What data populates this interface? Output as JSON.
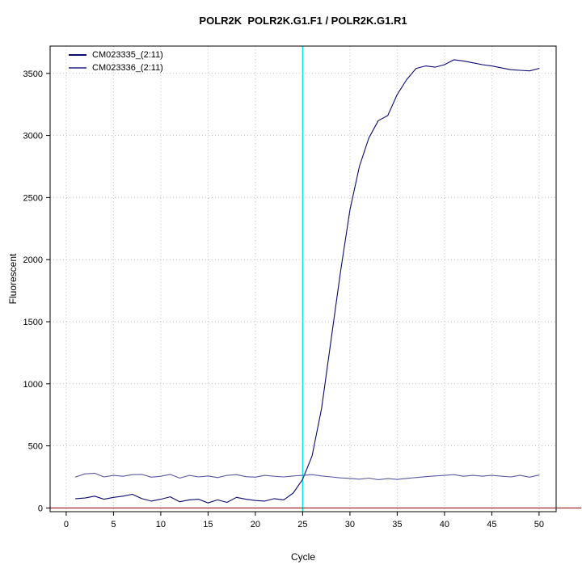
{
  "chart_data": {
    "type": "line",
    "title": "POLR2K  POLR2K.G1.F1 / POLR2K.G1.R1",
    "xlabel": "Cycle",
    "ylabel": "Fluorescent",
    "xlim": [
      -1.7,
      51.8
    ],
    "ylim": [
      -30,
      3720
    ],
    "xticks": [
      0,
      5,
      10,
      15,
      20,
      25,
      30,
      35,
      40,
      45,
      50
    ],
    "yticks": [
      0,
      500,
      1000,
      1500,
      2000,
      2500,
      3000,
      3500
    ],
    "grid": true,
    "grid_color": "#c3c3c3",
    "legend_position": "top-left",
    "x": [
      1,
      2,
      3,
      4,
      5,
      6,
      7,
      8,
      9,
      10,
      11,
      12,
      13,
      14,
      15,
      16,
      17,
      18,
      19,
      20,
      21,
      22,
      23,
      24,
      25,
      26,
      27,
      28,
      29,
      30,
      31,
      32,
      33,
      34,
      35,
      36,
      37,
      38,
      39,
      40,
      41,
      42,
      43,
      44,
      45,
      46,
      47,
      48,
      49,
      50
    ],
    "series": [
      {
        "name": "CM023335_(2:11)",
        "color": "#0b0b6f",
        "values": [
          75,
          80,
          95,
          70,
          85,
          95,
          110,
          75,
          55,
          70,
          90,
          50,
          65,
          70,
          40,
          65,
          45,
          85,
          70,
          60,
          55,
          75,
          65,
          120,
          230,
          420,
          800,
          1350,
          1900,
          2400,
          2750,
          2980,
          3120,
          3160,
          3330,
          3450,
          3540,
          3560,
          3550,
          3570,
          3610,
          3600,
          3585,
          3570,
          3560,
          3545,
          3530,
          3525,
          3520,
          3540
        ]
      },
      {
        "name": "CM023336_(2:11)",
        "color": "#5a5aa0",
        "values": [
          250,
          275,
          280,
          250,
          262,
          255,
          268,
          270,
          248,
          255,
          270,
          240,
          262,
          250,
          258,
          245,
          262,
          268,
          252,
          248,
          262,
          255,
          250,
          258,
          262,
          268,
          258,
          250,
          242,
          238,
          232,
          240,
          228,
          236,
          230,
          238,
          245,
          252,
          258,
          262,
          268,
          255,
          262,
          256,
          262,
          256,
          250,
          262,
          248,
          265
        ]
      }
    ],
    "vline": {
      "x": 25,
      "color": "#00e6ee"
    },
    "hline": {
      "y": 0,
      "color": "#8b0000"
    }
  }
}
